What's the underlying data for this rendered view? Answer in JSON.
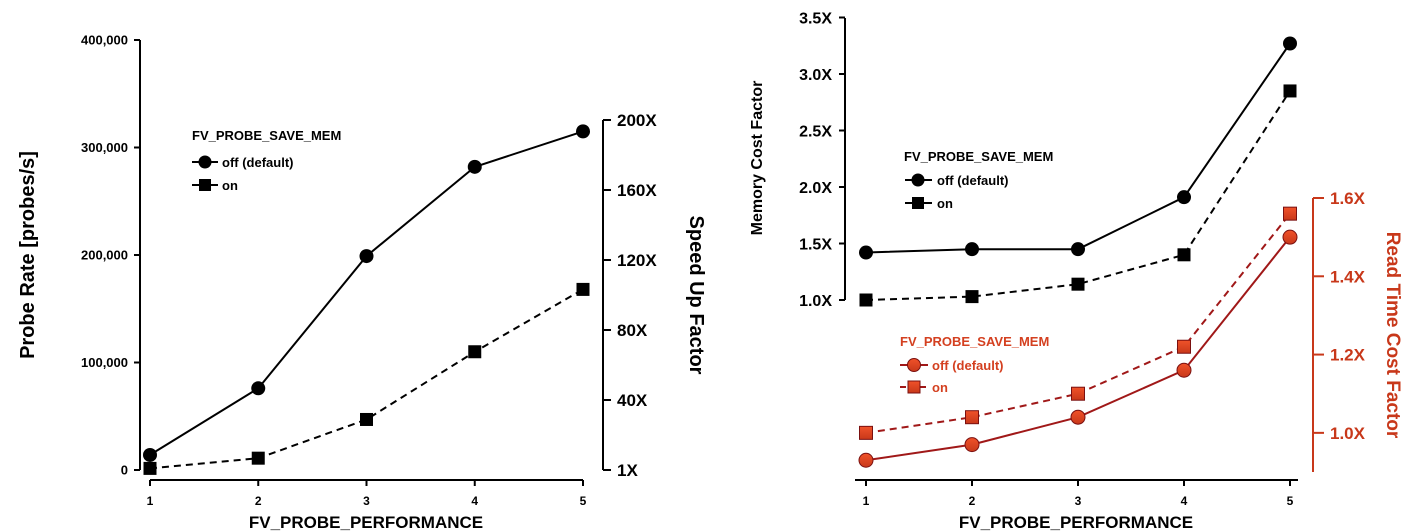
{
  "chart_data": [
    {
      "type": "line",
      "xlabel": "FV_PROBE_PERFORMANCE",
      "ylabel": "Probe Rate [probes/s]",
      "y2label": "Speed Up Factor",
      "x": [
        1,
        2,
        3,
        4,
        5
      ],
      "xticks": [
        "1",
        "2",
        "3",
        "4",
        "5"
      ],
      "ylim": [
        0,
        400000
      ],
      "yticks": [
        "0",
        "100,000",
        "200,000",
        "300,000",
        "400,000"
      ],
      "y2ticks": [
        "1X",
        "40X",
        "80X",
        "120X",
        "160X",
        "200X"
      ],
      "legend_title": "FV_PROBE_SAVE_MEM",
      "grid": false,
      "series": [
        {
          "name": "off (default)",
          "marker": "circle",
          "dash": "solid",
          "values": [
            14000,
            76000,
            199000,
            282000,
            315000
          ]
        },
        {
          "name": "on",
          "marker": "square",
          "dash": "dashed",
          "values": [
            1500,
            11000,
            47000,
            110000,
            168000
          ]
        }
      ]
    },
    {
      "type": "line",
      "xlabel": "FV_PROBE_PERFORMANCE",
      "ylabel": "Memory Cost Factor",
      "y2label": "Read Time Cost Factor",
      "x": [
        1,
        2,
        3,
        4,
        5
      ],
      "xticks": [
        "1",
        "2",
        "3",
        "4",
        "5"
      ],
      "ylim": [
        1.0,
        3.5
      ],
      "yticks": [
        "1.0X",
        "1.5X",
        "2.0X",
        "2.5X",
        "3.0X",
        "3.5X"
      ],
      "y2lim": [
        0.9,
        1.6
      ],
      "y2ticks": [
        "1.0X",
        "1.2X",
        "1.4X",
        "1.6X"
      ],
      "accent_color": "#b52020",
      "grid": false,
      "legends": [
        {
          "title": "FV_PROBE_SAVE_MEM",
          "entries": [
            "off (default)",
            "on"
          ]
        },
        {
          "title": "FV_PROBE_SAVE_MEM",
          "entries": [
            "off (default)",
            "on"
          ]
        }
      ],
      "series": [
        {
          "name": "off (default)",
          "axis": "memory",
          "marker": "circle",
          "dash": "solid",
          "color": "#000000",
          "values": [
            1.42,
            1.45,
            1.45,
            1.91,
            3.27
          ]
        },
        {
          "name": "on",
          "axis": "memory",
          "marker": "square",
          "dash": "dashed",
          "color": "#000000",
          "values": [
            1.0,
            1.03,
            1.14,
            1.4,
            2.85
          ]
        },
        {
          "name": "off (default)",
          "axis": "read time",
          "marker": "circle",
          "dash": "solid",
          "color": "#a01818",
          "values": [
            0.93,
            0.97,
            1.04,
            1.16,
            1.5
          ]
        },
        {
          "name": "on",
          "axis": "read time",
          "marker": "square",
          "dash": "dashed",
          "color": "#a01818",
          "values": [
            1.0,
            1.04,
            1.1,
            1.22,
            1.56
          ]
        }
      ]
    }
  ]
}
